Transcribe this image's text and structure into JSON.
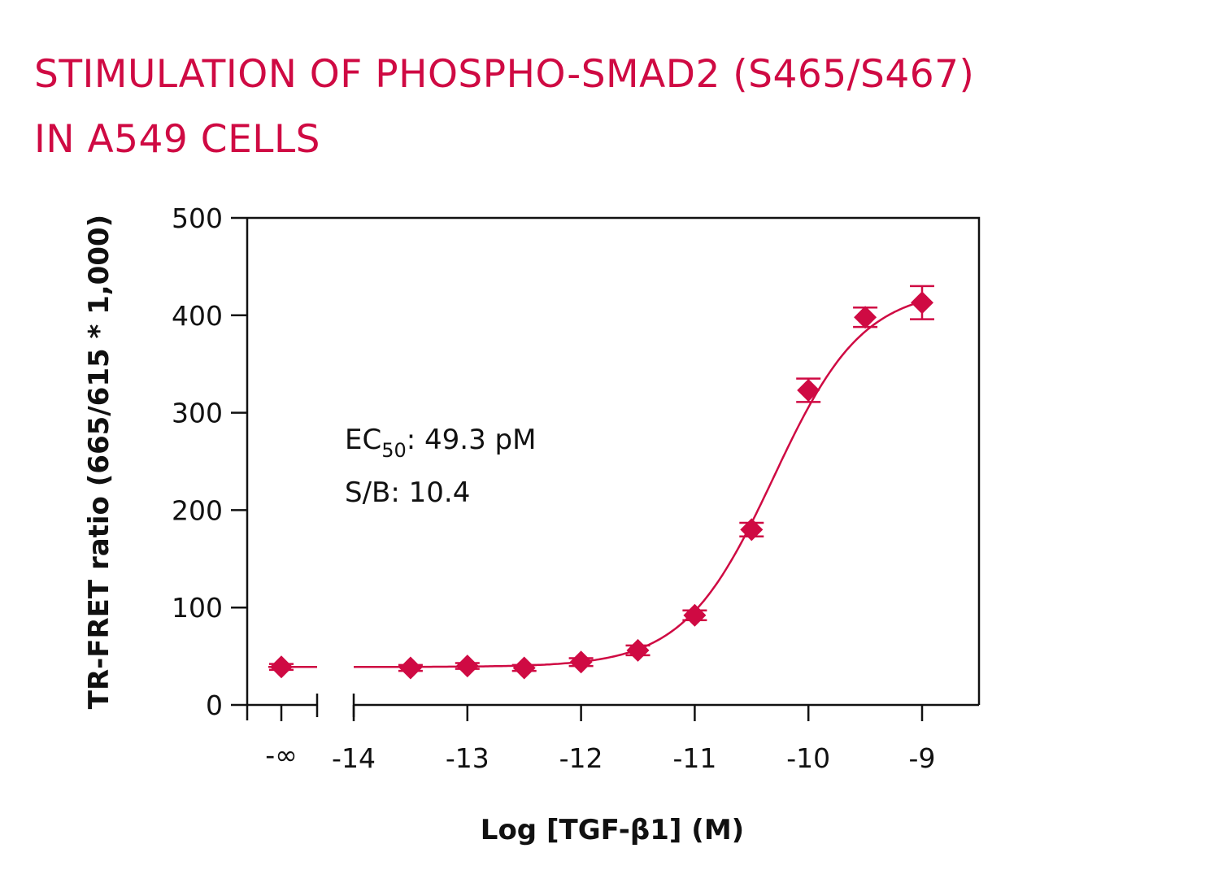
{
  "chart_data": {
    "type": "scatter",
    "title_line1": "STIMULATION OF PHOSPHO-SMAD2 (S465/S467)",
    "title_line2": "IN A549 CELLS",
    "xlabel": "Log [TGF-β1] (M)",
    "ylabel": "TR-FRET ratio (665/615 * 1,000)",
    "ylim": [
      0,
      500
    ],
    "xlim": [
      -14,
      -9
    ],
    "yticks": [
      0,
      100,
      200,
      300,
      400,
      500
    ],
    "xticks": [
      -14,
      -13,
      -12,
      -11,
      -10,
      -9
    ],
    "xtick_labels": [
      "-14",
      "-13",
      "-12",
      "-11",
      "-10",
      "-9"
    ],
    "neg_inf_label": "-∞",
    "axis_break": true,
    "grid": false,
    "color": "#cf0a43",
    "marker": "diamond",
    "neg_inf_point": {
      "y": 39,
      "err": 3
    },
    "points": [
      {
        "x": -13.5,
        "y": 38,
        "err": 3
      },
      {
        "x": -13,
        "y": 40,
        "err": 3
      },
      {
        "x": -12.5,
        "y": 38,
        "err": 3
      },
      {
        "x": -12,
        "y": 44,
        "err": 4
      },
      {
        "x": -11.5,
        "y": 56,
        "err": 5
      },
      {
        "x": -11,
        "y": 92,
        "err": 5
      },
      {
        "x": -10.5,
        "y": 180,
        "err": 7
      },
      {
        "x": -10,
        "y": 323,
        "err": 12
      },
      {
        "x": -9.5,
        "y": 398,
        "err": 10
      },
      {
        "x": -9,
        "y": 413,
        "err": 17
      }
    ],
    "fit": {
      "model": "4PL",
      "bottom": 39,
      "top": 428,
      "logEC50": -10.307,
      "hill": 1.1
    },
    "annotations": {
      "ec50_prefix": "EC",
      "ec50_sub": "50",
      "ec50_value": ": 49.3 pM",
      "sb": "S/B: 10.4"
    }
  }
}
